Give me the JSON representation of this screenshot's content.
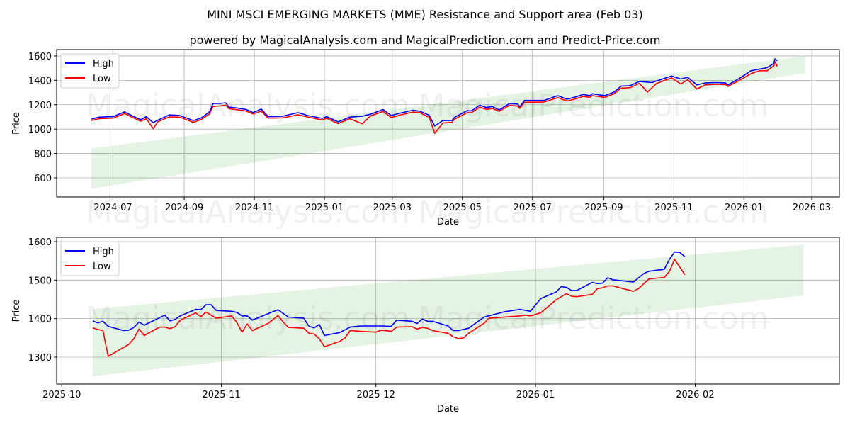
{
  "title": "MINI MSCI EMERGING MARKETS (MME) Resistance and Support area (Feb 03)",
  "subtitle": "powered by MagicalAnalysis.com and MagicalPrediction.com and Predict-Price.com",
  "watermarks": [
    "MagicalAnalysis.com",
    "MagicalPrediction.com"
  ],
  "colors": {
    "high": "#0000ff",
    "low": "#ff0000",
    "band": "#2ca02c",
    "grid": "#b0b0b0"
  },
  "chart_data": [
    {
      "type": "line",
      "xlabel": "Date",
      "ylabel": "Price",
      "xlim": [
        "2024-05-13",
        "2026-03-25"
      ],
      "ylim": [
        443,
        1652
      ],
      "grid": true,
      "legend": {
        "placement": "top-left",
        "entries": [
          "High",
          "Low"
        ]
      },
      "yticks": [
        600,
        800,
        1000,
        1200,
        1400,
        1600
      ],
      "xticks": [
        "2024-07",
        "2024-09",
        "2024-11",
        "2025-01",
        "2025-03",
        "2025-05",
        "2025-07",
        "2025-09",
        "2025-11",
        "2026-01",
        "2026-03"
      ],
      "band": {
        "x": [
          "2024-06-12",
          "2026-02-23"
        ],
        "lower": [
          510,
          1460
        ],
        "upper": [
          840,
          1600
        ]
      },
      "x": [
        "2024-06-12",
        "2024-06-19",
        "2024-07-01",
        "2024-07-11",
        "2024-07-18",
        "2024-07-25",
        "2024-07-30",
        "2024-08-05",
        "2024-08-09",
        "2024-08-19",
        "2024-08-28",
        "2024-09-09",
        "2024-09-16",
        "2024-09-23",
        "2024-09-26",
        "2024-10-02",
        "2024-10-07",
        "2024-10-10",
        "2024-10-16",
        "2024-10-25",
        "2024-10-31",
        "2024-11-07",
        "2024-11-13",
        "2024-11-26",
        "2024-12-09",
        "2024-12-17",
        "2024-12-30",
        "2025-01-03",
        "2025-01-13",
        "2025-01-23",
        "2025-02-03",
        "2025-02-10",
        "2025-02-21",
        "2025-02-28",
        "2025-03-10",
        "2025-03-19",
        "2025-03-25",
        "2025-03-31",
        "2025-04-02",
        "2025-04-07",
        "2025-04-14",
        "2025-04-22",
        "2025-04-24",
        "2025-05-05",
        "2025-05-09",
        "2025-05-16",
        "2025-05-22",
        "2025-05-27",
        "2025-06-02",
        "2025-06-11",
        "2025-06-18",
        "2025-06-20",
        "2025-06-24",
        "2025-07-11",
        "2025-07-23",
        "2025-07-31",
        "2025-08-08",
        "2025-08-14",
        "2025-08-20",
        "2025-08-22",
        "2025-09-02",
        "2025-09-10",
        "2025-09-16",
        "2025-09-24",
        "2025-10-02",
        "2025-10-09",
        "2025-10-13",
        "2025-10-17",
        "2025-10-30",
        "2025-11-07",
        "2025-11-13",
        "2025-11-21",
        "2025-11-28",
        "2025-12-08",
        "2025-12-16",
        "2025-12-18",
        "2025-12-29",
        "2026-01-07",
        "2026-01-15",
        "2026-01-21",
        "2026-01-27",
        "2026-01-28",
        "2026-01-30"
      ],
      "series": [
        {
          "name": "High",
          "values": [
            1082,
            1098,
            1102,
            1141,
            1108,
            1077,
            1102,
            1053,
            1073,
            1116,
            1112,
            1069,
            1092,
            1141,
            1210,
            1210,
            1216,
            1180,
            1174,
            1161,
            1135,
            1165,
            1102,
            1106,
            1135,
            1112,
            1088,
            1102,
            1059,
            1098,
            1106,
            1122,
            1161,
            1112,
            1135,
            1155,
            1147,
            1122,
            1115,
            1025,
            1070,
            1070,
            1095,
            1151,
            1150,
            1196,
            1177,
            1186,
            1157,
            1210,
            1206,
            1181,
            1235,
            1235,
            1274,
            1245,
            1265,
            1284,
            1274,
            1290,
            1274,
            1304,
            1352,
            1356,
            1391,
            1385,
            1382,
            1395,
            1436,
            1411,
            1425,
            1362,
            1378,
            1382,
            1378,
            1362,
            1421,
            1479,
            1493,
            1504,
            1538,
            1577,
            1561
          ]
        },
        {
          "name": "Low",
          "values": [
            1070,
            1085,
            1090,
            1128,
            1095,
            1065,
            1085,
            1004,
            1060,
            1100,
            1098,
            1055,
            1080,
            1125,
            1185,
            1190,
            1195,
            1168,
            1160,
            1148,
            1125,
            1148,
            1090,
            1092,
            1118,
            1100,
            1075,
            1088,
            1045,
            1085,
            1043,
            1108,
            1145,
            1095,
            1120,
            1140,
            1135,
            1105,
            1100,
            965,
            1050,
            1055,
            1080,
            1135,
            1135,
            1180,
            1162,
            1170,
            1145,
            1195,
            1190,
            1170,
            1220,
            1222,
            1258,
            1230,
            1250,
            1268,
            1260,
            1275,
            1260,
            1290,
            1335,
            1340,
            1375,
            1304,
            1340,
            1375,
            1420,
            1370,
            1405,
            1329,
            1362,
            1368,
            1365,
            1350,
            1405,
            1455,
            1480,
            1478,
            1520,
            1554,
            1514
          ]
        }
      ]
    },
    {
      "type": "line",
      "xlabel": "Date",
      "ylabel": "Price",
      "xlim": [
        "2025-09-30",
        "2026-03-01"
      ],
      "ylim": [
        1230,
        1611
      ],
      "grid": true,
      "legend": {
        "placement": "top-left",
        "entries": [
          "High",
          "Low"
        ]
      },
      "yticks": [
        1300,
        1400,
        1500,
        1600
      ],
      "xticks": [
        "2025-10",
        "2025-11",
        "2025-12",
        "2026-01",
        "2026-02"
      ],
      "band": {
        "x": [
          "2025-10-07",
          "2026-02-22"
        ],
        "lower": [
          1250,
          1460
        ],
        "upper": [
          1425,
          1592
        ]
      },
      "series": [
        {
          "name": "High",
          "x": [
            "2025-10-07",
            "2025-10-08",
            "2025-10-09",
            "2025-10-10",
            "2025-10-13",
            "2025-10-14",
            "2025-10-15",
            "2025-10-16",
            "2025-10-17",
            "2025-10-21",
            "2025-10-22",
            "2025-10-23",
            "2025-10-24",
            "2025-10-27",
            "2025-10-28",
            "2025-10-29",
            "2025-10-30",
            "2025-10-31",
            "2025-11-03",
            "2025-11-04",
            "2025-11-05",
            "2025-11-06",
            "2025-11-07",
            "2025-11-11",
            "2025-11-12",
            "2025-11-14",
            "2025-11-17",
            "2025-11-18",
            "2025-11-19",
            "2025-11-20",
            "2025-11-21",
            "2025-11-24",
            "2025-11-25",
            "2025-11-26",
            "2025-11-28",
            "2025-12-02",
            "2025-12-04",
            "2025-12-05",
            "2025-12-08",
            "2025-12-09",
            "2025-12-10",
            "2025-12-11",
            "2025-12-12",
            "2025-12-15",
            "2025-12-16",
            "2025-12-17",
            "2025-12-19",
            "2025-12-22",
            "2025-12-26",
            "2025-12-29",
            "2025-12-31",
            "2026-01-02",
            "2026-01-05",
            "2026-01-06",
            "2026-01-07",
            "2026-01-08",
            "2026-01-09",
            "2026-01-12",
            "2026-01-13",
            "2026-01-14",
            "2026-01-15",
            "2026-01-16",
            "2026-01-20",
            "2026-01-22",
            "2026-01-23",
            "2026-01-26",
            "2026-01-27",
            "2026-01-28",
            "2026-01-29",
            "2026-01-30"
          ],
          "values": [
            1394,
            1389,
            1393,
            1380,
            1369,
            1370,
            1377,
            1391,
            1383,
            1409,
            1394,
            1398,
            1407,
            1424,
            1423,
            1436,
            1436,
            1421,
            1419,
            1416,
            1407,
            1407,
            1396,
            1418,
            1423,
            1404,
            1401,
            1380,
            1376,
            1385,
            1356,
            1364,
            1371,
            1378,
            1381,
            1381,
            1380,
            1396,
            1393,
            1387,
            1399,
            1393,
            1393,
            1381,
            1369,
            1369,
            1375,
            1404,
            1418,
            1424,
            1419,
            1452,
            1469,
            1483,
            1481,
            1473,
            1473,
            1494,
            1491,
            1492,
            1506,
            1501,
            1495,
            1517,
            1523,
            1528,
            1554,
            1573,
            1572,
            1561
          ]
        },
        {
          "name": "Low",
          "x": [
            "2025-10-07",
            "2025-10-08",
            "2025-10-09",
            "2025-10-10",
            "2025-10-14",
            "2025-10-15",
            "2025-10-16",
            "2025-10-17",
            "2025-10-20",
            "2025-10-21",
            "2025-10-22",
            "2025-10-23",
            "2025-10-24",
            "2025-10-27",
            "2025-10-28",
            "2025-10-29",
            "2025-10-31",
            "2025-11-03",
            "2025-11-04",
            "2025-11-05",
            "2025-11-06",
            "2025-11-07",
            "2025-11-10",
            "2025-11-12",
            "2025-11-13",
            "2025-11-14",
            "2025-11-17",
            "2025-11-18",
            "2025-11-19",
            "2025-11-20",
            "2025-11-21",
            "2025-11-24",
            "2025-11-25",
            "2025-11-26",
            "2025-11-28",
            "2025-12-01",
            "2025-12-02",
            "2025-12-04",
            "2025-12-05",
            "2025-12-08",
            "2025-12-09",
            "2025-12-10",
            "2025-12-11",
            "2025-12-12",
            "2025-12-15",
            "2025-12-16",
            "2025-12-17",
            "2025-12-18",
            "2025-12-19",
            "2025-12-22",
            "2025-12-23",
            "2025-12-29",
            "2025-12-30",
            "2025-12-31",
            "2026-01-02",
            "2026-01-05",
            "2026-01-07",
            "2026-01-08",
            "2026-01-09",
            "2026-01-12",
            "2026-01-13",
            "2026-01-14",
            "2026-01-15",
            "2026-01-16",
            "2026-01-20",
            "2026-01-21",
            "2026-01-23",
            "2026-01-26",
            "2026-01-27",
            "2026-01-28",
            "2026-01-30"
          ],
          "values": [
            1376,
            1372,
            1369,
            1302,
            1333,
            1348,
            1373,
            1356,
            1378,
            1378,
            1374,
            1379,
            1396,
            1415,
            1405,
            1417,
            1401,
            1407,
            1390,
            1365,
            1386,
            1369,
            1387,
            1408,
            1391,
            1377,
            1375,
            1362,
            1360,
            1348,
            1327,
            1341,
            1350,
            1369,
            1367,
            1365,
            1370,
            1367,
            1378,
            1379,
            1373,
            1377,
            1375,
            1369,
            1362,
            1353,
            1348,
            1350,
            1362,
            1388,
            1401,
            1407,
            1409,
            1407,
            1415,
            1449,
            1465,
            1458,
            1457,
            1463,
            1478,
            1480,
            1485,
            1485,
            1471,
            1478,
            1503,
            1507,
            1523,
            1554,
            1514
          ]
        }
      ]
    }
  ]
}
